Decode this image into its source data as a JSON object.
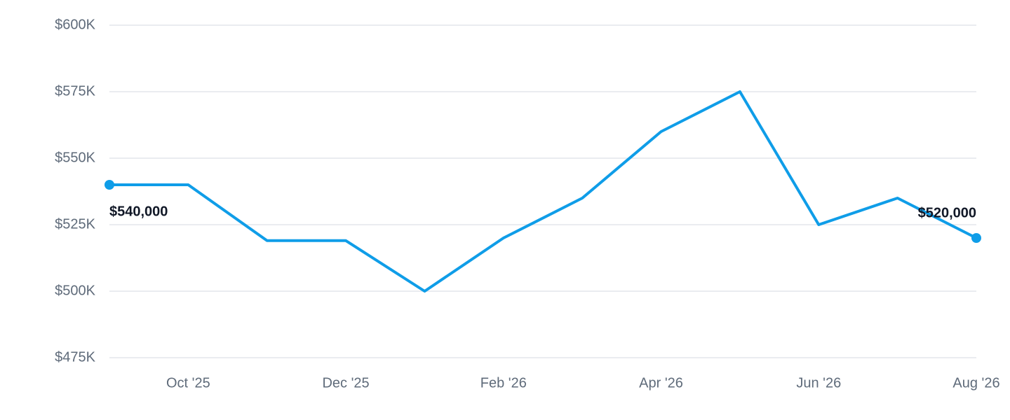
{
  "chart_data": {
    "type": "line",
    "categories": [
      null,
      "Oct '25",
      null,
      "Dec '25",
      null,
      "Feb '26",
      null,
      "Apr '26",
      null,
      "Jun '26",
      null,
      "Aug '26"
    ],
    "series": [
      {
        "color": "#0f9de8",
        "values": [
          540000,
          540000,
          519000,
          519000,
          500000,
          520000,
          535000,
          560000,
          575000,
          525000,
          535000,
          520000
        ],
        "value_labels": [
          "$540,000",
          null,
          null,
          null,
          null,
          null,
          null,
          null,
          null,
          null,
          null,
          "$520,000"
        ]
      }
    ],
    "ylim": [
      475000,
      600000
    ],
    "yticks": [
      {
        "value": 475000,
        "label": "$475K"
      },
      {
        "value": 500000,
        "label": "$500K"
      },
      {
        "value": 525000,
        "label": "$525K"
      },
      {
        "value": 550000,
        "label": "$550K"
      },
      {
        "value": 575000,
        "label": "$575K"
      },
      {
        "value": 600000,
        "label": "$600K"
      }
    ],
    "grid": true
  }
}
